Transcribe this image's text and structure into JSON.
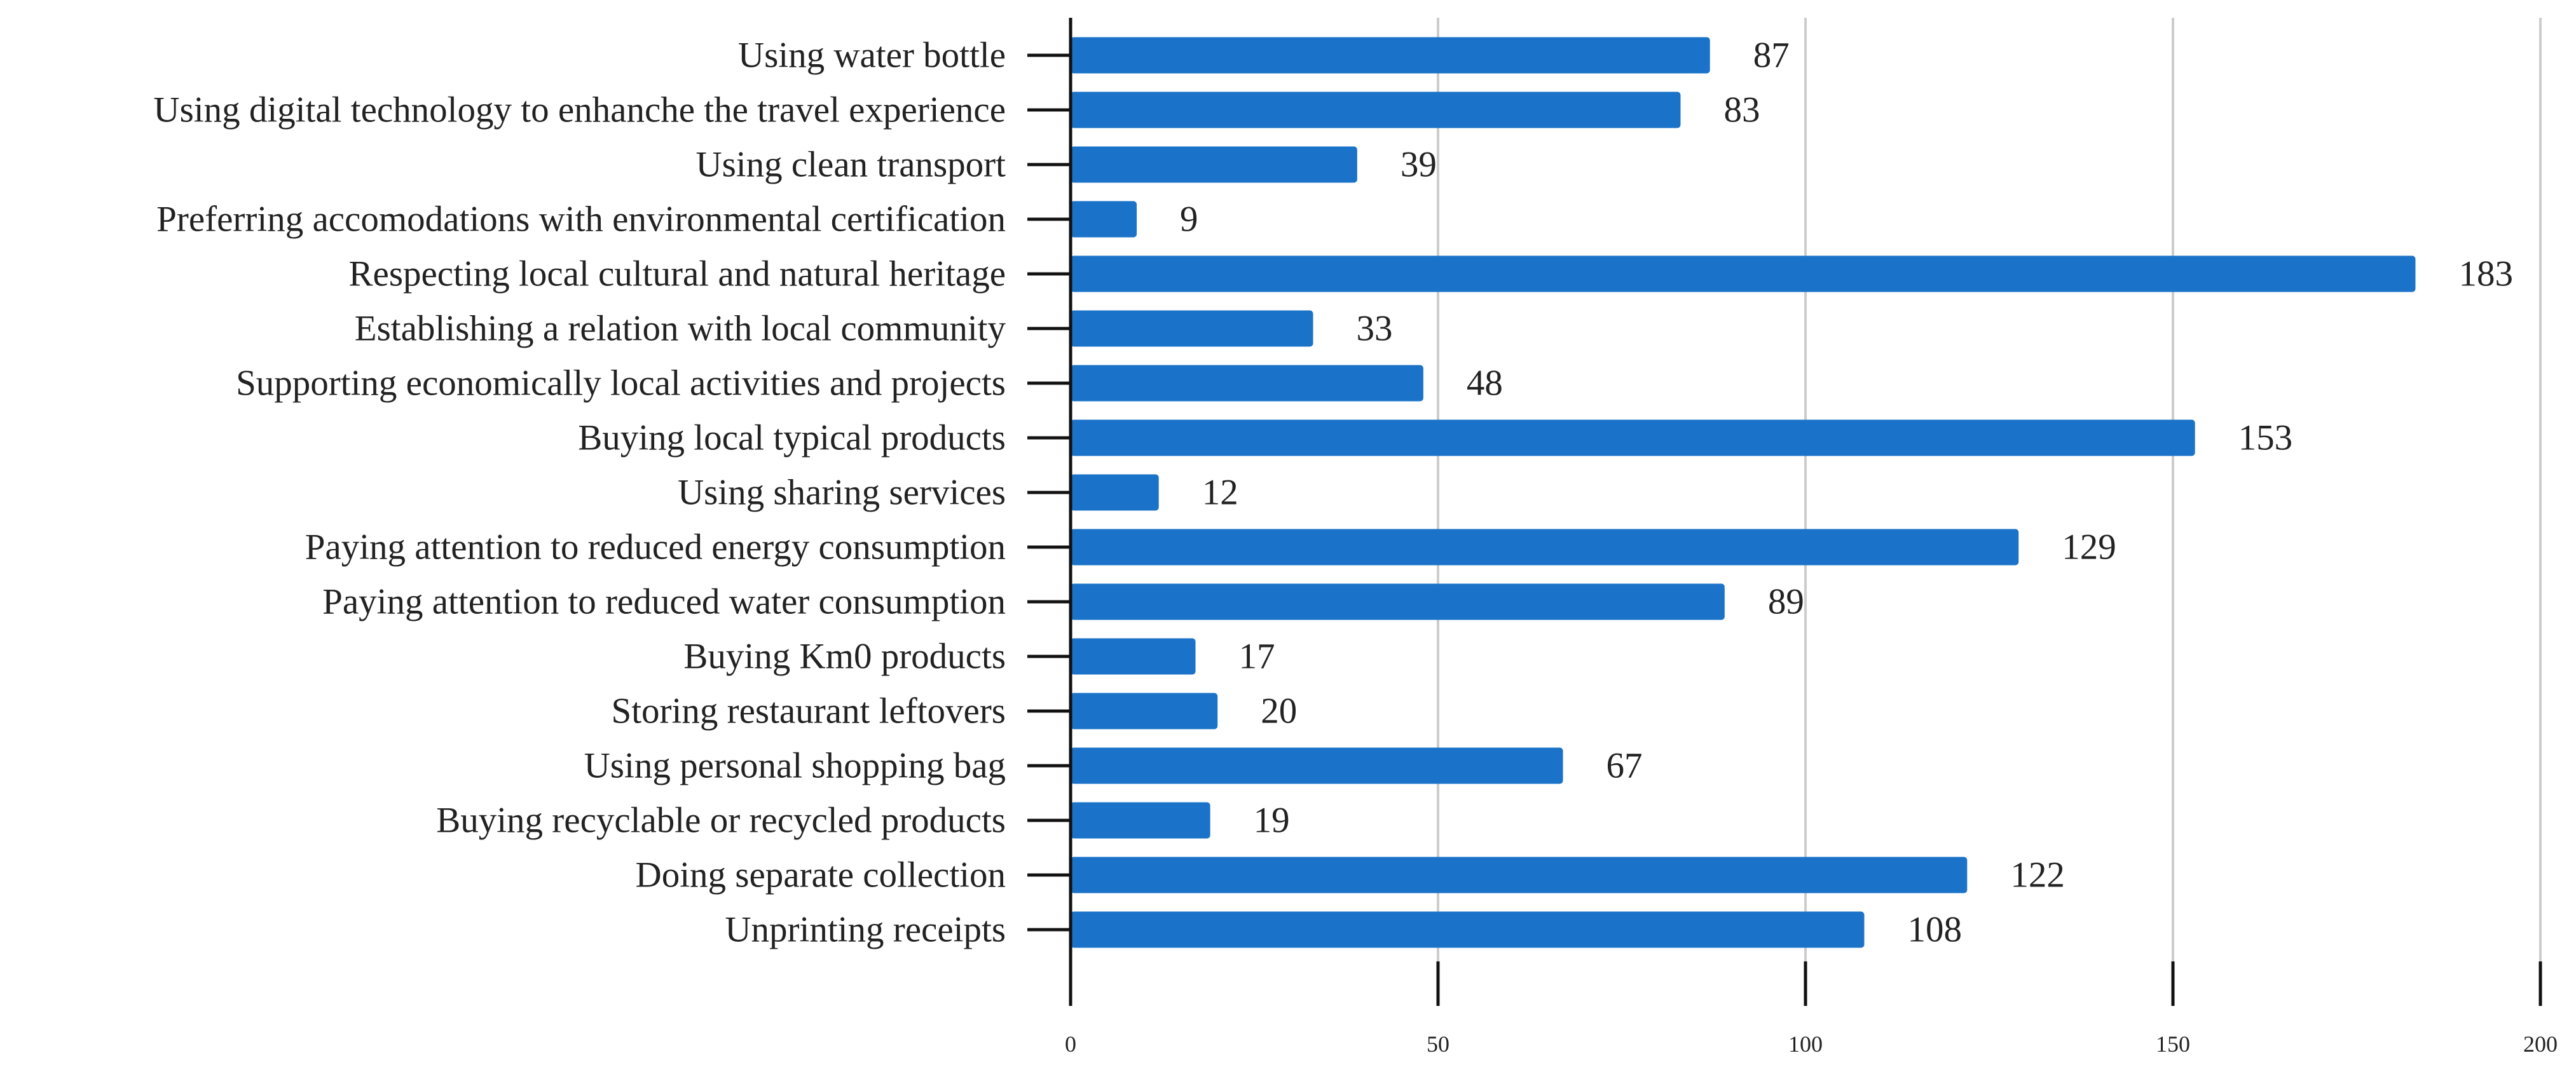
{
  "chart_data": {
    "type": "bar",
    "orientation": "horizontal",
    "title": "",
    "xlabel": "",
    "ylabel": "",
    "xlim": [
      0,
      200
    ],
    "x_ticks": [
      "0",
      "50",
      "100",
      "150",
      "200"
    ],
    "grid": true,
    "bar_color": "#1a73c8",
    "grid_color": "#cccccc",
    "categories": [
      "Using water bottle",
      "Using digital technology to enhanche the travel experience",
      "Using clean transport",
      "Preferring accomodations with environmental certification",
      "Respecting local cultural and natural heritage",
      "Establishing a relation with local community",
      "Supporting economically local activities and projects",
      "Buying local typical products",
      "Using sharing services",
      "Paying attention to reduced energy consumption",
      "Paying attention to reduced water consumption",
      "Buying Km0 products",
      "Storing restaurant leftovers",
      "Using personal shopping bag",
      "Buying recyclable or recycled products",
      "Doing separate collection",
      "Unprinting receipts"
    ],
    "values": [
      87,
      83,
      39,
      9,
      183,
      33,
      48,
      153,
      12,
      129,
      89,
      17,
      20,
      67,
      19,
      122,
      108
    ]
  }
}
